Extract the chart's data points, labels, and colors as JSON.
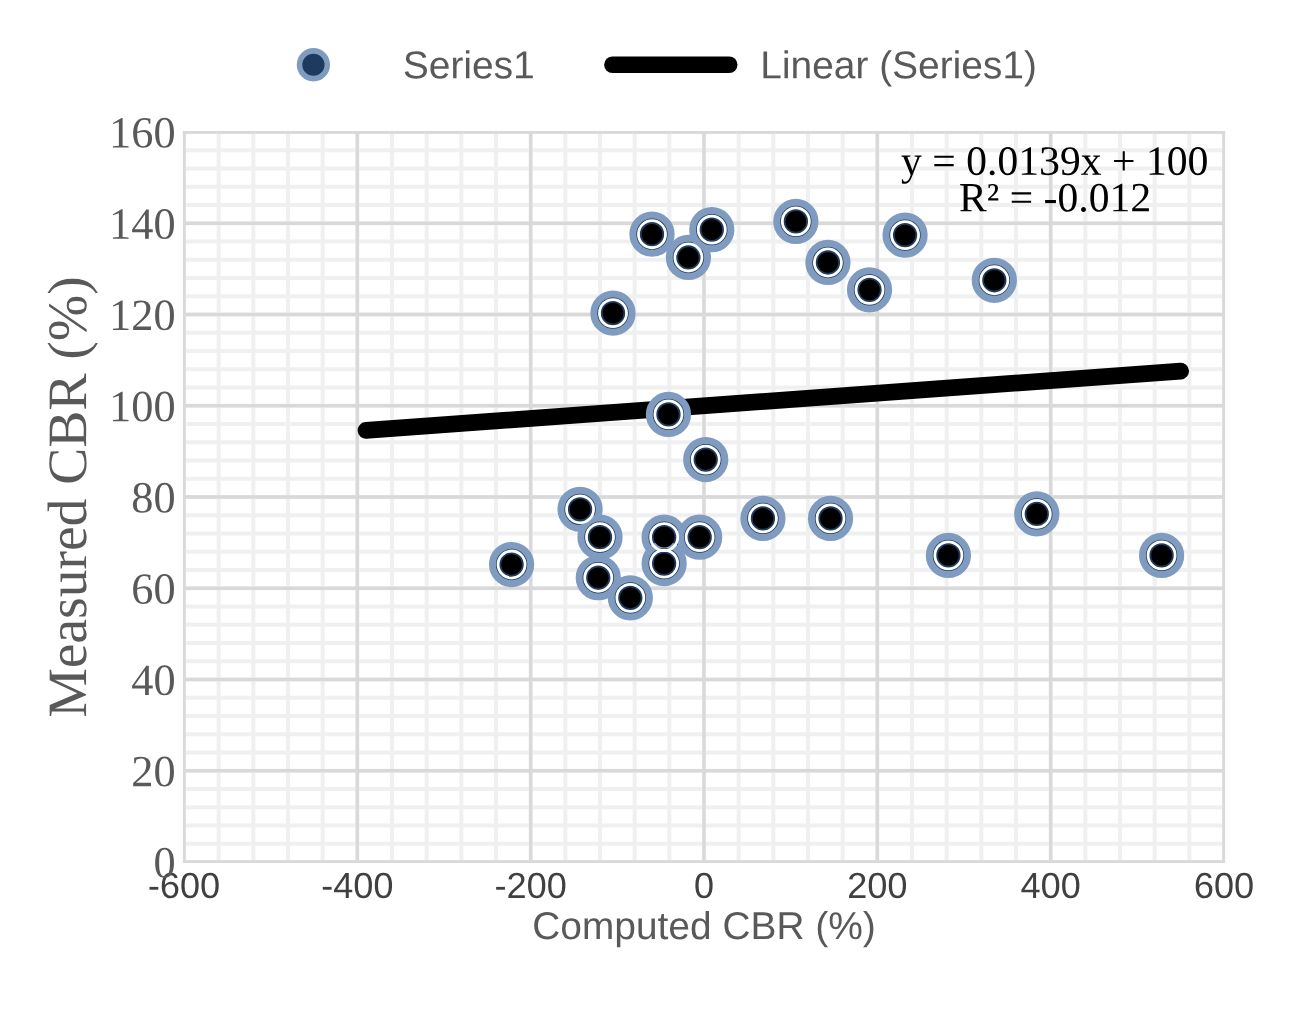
{
  "chart_data": {
    "type": "scatter",
    "xlabel": "Computed CBR (%)",
    "ylabel": "Measured CBR (%)",
    "xlim": [
      -600,
      600
    ],
    "xticks": [
      -600,
      -400,
      -200,
      0,
      200,
      400,
      600
    ],
    "ylim": [
      0,
      160
    ],
    "yticks": [
      0,
      20,
      40,
      60,
      80,
      100,
      120,
      140,
      160
    ],
    "grid": true,
    "legend": "top",
    "annotations": [
      "y = 0.0139x + 100",
      "R² = -0.012"
    ],
    "series": [
      {
        "name": "Series1",
        "marker": "circle",
        "color": "#1f3a5f",
        "x": [
          -222,
          -143,
          -120,
          -122,
          -85,
          -105,
          -60,
          -18,
          9,
          -41,
          2,
          -46,
          -46,
          -5,
          68,
          146,
          106,
          143,
          191,
          232,
          335,
          282,
          384,
          528
        ],
        "values": [
          65.2,
          77.3,
          71.2,
          62.3,
          57.9,
          120.3,
          137.6,
          132.5,
          138.6,
          98.1,
          88.2,
          71.2,
          65.4,
          71.2,
          75.3,
          75.3,
          140.4,
          131.4,
          125.4,
          137.4,
          127.5,
          67.2,
          76.3,
          67.2
        ]
      },
      {
        "name": "Linear (Series1)",
        "type": "line",
        "color": "#000000",
        "x": [
          -390,
          550
        ],
        "values": [
          94.6,
          107.6
        ]
      }
    ]
  }
}
